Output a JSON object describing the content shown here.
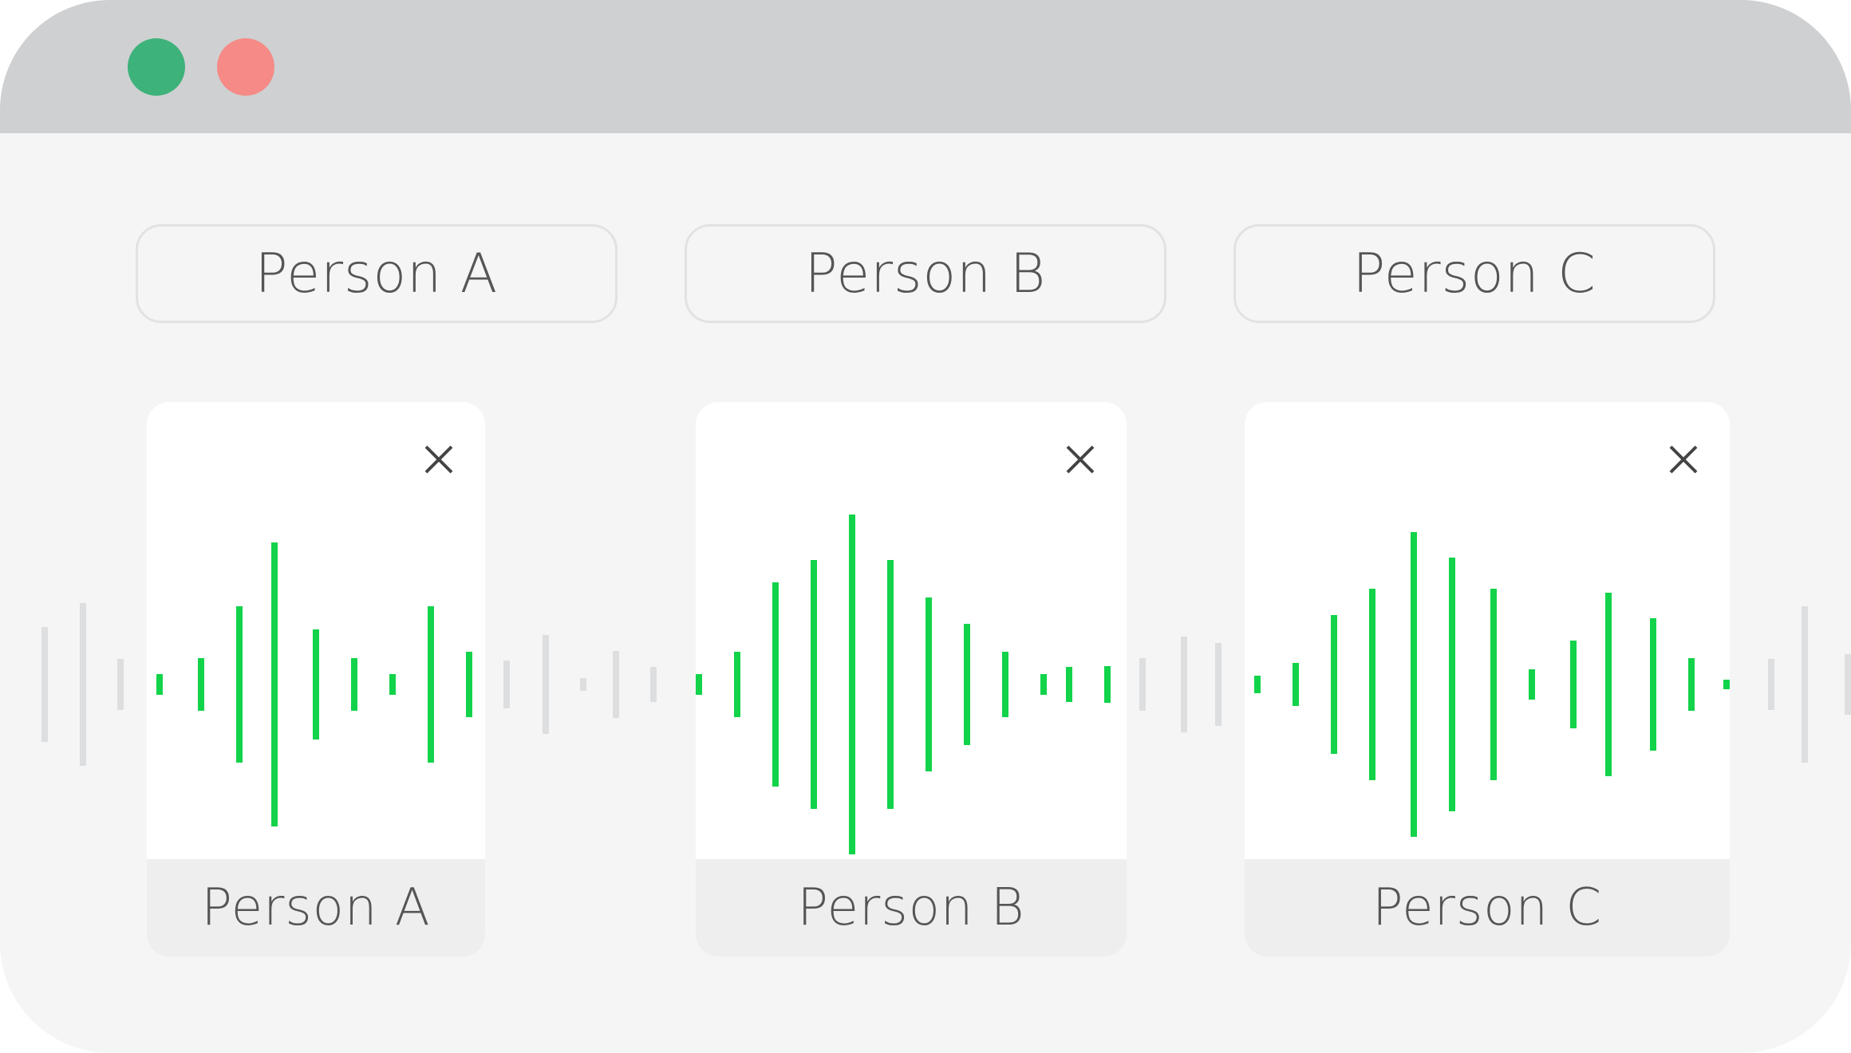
{
  "window": {
    "controls": [
      {
        "name": "green-dot",
        "color": "#3db27a"
      },
      {
        "name": "red-dot",
        "color": "#f58a86"
      }
    ]
  },
  "tabs": [
    {
      "label": "Person A"
    },
    {
      "label": "Person B"
    },
    {
      "label": "Person C"
    }
  ],
  "cards": [
    {
      "label": "Person A",
      "close_icon": "close-icon"
    },
    {
      "label": "Person B",
      "close_icon": "close-icon"
    },
    {
      "label": "Person C",
      "close_icon": "close-icon"
    }
  ],
  "colors": {
    "active_wave": "#12d34a",
    "inactive_wave": "#dcdee0"
  }
}
